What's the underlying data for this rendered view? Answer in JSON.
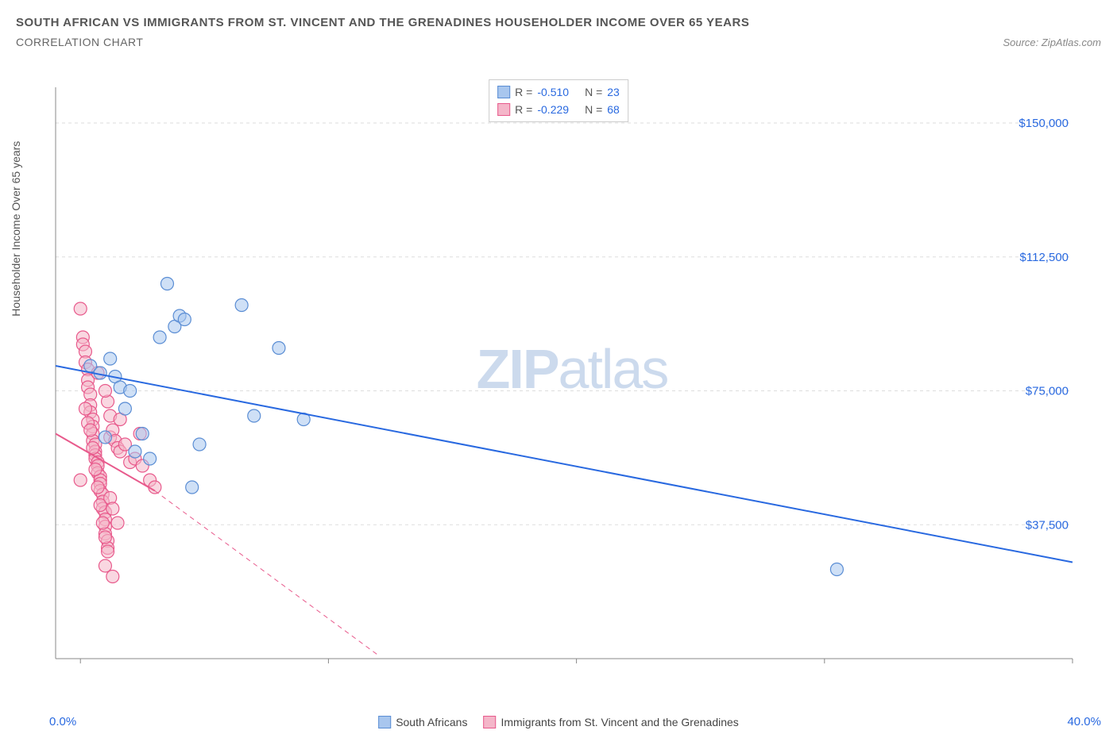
{
  "header": {
    "title": "SOUTH AFRICAN VS IMMIGRANTS FROM ST. VINCENT AND THE GRENADINES HOUSEHOLDER INCOME OVER 65 YEARS",
    "subtitle": "CORRELATION CHART",
    "source": "Source: ZipAtlas.com"
  },
  "watermark": {
    "pre": "ZIP",
    "post": "atlas"
  },
  "chart": {
    "type": "scatter",
    "ylabel": "Householder Income Over 65 years",
    "xlim": [
      -1,
      40
    ],
    "ylim": [
      0,
      160000
    ],
    "xticks": [
      0,
      10,
      20,
      30,
      40
    ],
    "yticks": [
      37500,
      75000,
      112500,
      150000
    ],
    "ytick_labels": [
      "$37,500",
      "$75,000",
      "$112,500",
      "$150,000"
    ],
    "x_axis_labels": {
      "left": "0.0%",
      "right": "40.0%"
    },
    "grid_color": "#dddddd",
    "axis_color": "#888888",
    "background_color": "#ffffff",
    "tick_label_color": "#2969e0",
    "series": [
      {
        "name": "South Africans",
        "fill": "#a8c6ee",
        "fill_opacity": 0.55,
        "stroke": "#5a8dd4",
        "marker_radius": 8,
        "trend": {
          "x1": -1,
          "y1": 82000,
          "x2": 40,
          "y2": 27000,
          "color": "#2969e0",
          "width": 2,
          "dash": ""
        },
        "R": "-0.510",
        "N": "23",
        "points": [
          [
            0.4,
            82000
          ],
          [
            0.8,
            80000
          ],
          [
            1.2,
            84000
          ],
          [
            1.4,
            79000
          ],
          [
            1.6,
            76000
          ],
          [
            2.0,
            75000
          ],
          [
            2.2,
            58000
          ],
          [
            2.5,
            63000
          ],
          [
            2.8,
            56000
          ],
          [
            3.2,
            90000
          ],
          [
            3.5,
            105000
          ],
          [
            3.8,
            93000
          ],
          [
            4.0,
            96000
          ],
          [
            4.2,
            95000
          ],
          [
            4.8,
            60000
          ],
          [
            4.5,
            48000
          ],
          [
            6.5,
            99000
          ],
          [
            7.0,
            68000
          ],
          [
            8.0,
            87000
          ],
          [
            9.0,
            67000
          ],
          [
            30.5,
            25000
          ],
          [
            1.0,
            62000
          ],
          [
            1.8,
            70000
          ]
        ]
      },
      {
        "name": "Immigrants from St. Vincent and the Grenadines",
        "fill": "#f4b6c9",
        "fill_opacity": 0.55,
        "stroke": "#e85a8c",
        "marker_radius": 8,
        "trend": {
          "x1": -1,
          "y1": 63000,
          "x2": 3.0,
          "y2": 47000,
          "color": "#e85a8c",
          "width": 2,
          "dash": ""
        },
        "trend_dashed": {
          "x1": 3.0,
          "y1": 47000,
          "x2": 12,
          "y2": 1000,
          "color": "#e85a8c",
          "width": 1,
          "dash": "6,5"
        },
        "R": "-0.229",
        "N": "68",
        "points": [
          [
            0.0,
            98000
          ],
          [
            0.1,
            90000
          ],
          [
            0.1,
            88000
          ],
          [
            0.2,
            86000
          ],
          [
            0.2,
            83000
          ],
          [
            0.3,
            81000
          ],
          [
            0.3,
            78000
          ],
          [
            0.3,
            76000
          ],
          [
            0.4,
            74000
          ],
          [
            0.4,
            71000
          ],
          [
            0.4,
            69000
          ],
          [
            0.5,
            67000
          ],
          [
            0.5,
            65000
          ],
          [
            0.5,
            63000
          ],
          [
            0.5,
            61000
          ],
          [
            0.6,
            60000
          ],
          [
            0.6,
            58000
          ],
          [
            0.6,
            57000
          ],
          [
            0.6,
            56000
          ],
          [
            0.7,
            55000
          ],
          [
            0.7,
            54000
          ],
          [
            0.7,
            52000
          ],
          [
            0.8,
            51000
          ],
          [
            0.8,
            50000
          ],
          [
            0.8,
            49000
          ],
          [
            0.8,
            47000
          ],
          [
            0.9,
            46000
          ],
          [
            0.9,
            44000
          ],
          [
            0.9,
            42000
          ],
          [
            1.0,
            41000
          ],
          [
            1.0,
            39000
          ],
          [
            1.0,
            37000
          ],
          [
            1.0,
            35000
          ],
          [
            1.1,
            33000
          ],
          [
            1.1,
            31000
          ],
          [
            0.2,
            70000
          ],
          [
            0.3,
            66000
          ],
          [
            0.4,
            64000
          ],
          [
            0.5,
            59000
          ],
          [
            0.6,
            53000
          ],
          [
            0.7,
            48000
          ],
          [
            0.8,
            43000
          ],
          [
            0.9,
            38000
          ],
          [
            1.0,
            34000
          ],
          [
            1.1,
            30000
          ],
          [
            1.2,
            62000
          ],
          [
            1.3,
            64000
          ],
          [
            1.4,
            61000
          ],
          [
            1.5,
            59000
          ],
          [
            1.6,
            58000
          ],
          [
            1.8,
            60000
          ],
          [
            2.0,
            55000
          ],
          [
            2.2,
            56000
          ],
          [
            2.5,
            54000
          ],
          [
            2.8,
            50000
          ],
          [
            3.0,
            48000
          ],
          [
            1.2,
            45000
          ],
          [
            1.3,
            42000
          ],
          [
            1.5,
            38000
          ],
          [
            1.1,
            72000
          ],
          [
            1.2,
            68000
          ],
          [
            1.0,
            75000
          ],
          [
            0.0,
            50000
          ],
          [
            1.0,
            26000
          ],
          [
            1.3,
            23000
          ],
          [
            1.6,
            67000
          ],
          [
            2.4,
            63000
          ],
          [
            0.7,
            80000
          ]
        ]
      }
    ]
  },
  "legend_top": {
    "rows": [
      {
        "swatch_fill": "#a8c6ee",
        "swatch_stroke": "#5a8dd4",
        "R_label": "R =",
        "R_val": "-0.510",
        "N_label": "N =",
        "N_val": "23"
      },
      {
        "swatch_fill": "#f4b6c9",
        "swatch_stroke": "#e85a8c",
        "R_label": "R =",
        "R_val": "-0.229",
        "N_label": "N =",
        "N_val": "68"
      }
    ]
  },
  "legend_bottom": {
    "items": [
      {
        "swatch_fill": "#a8c6ee",
        "swatch_stroke": "#5a8dd4",
        "label": "South Africans"
      },
      {
        "swatch_fill": "#f4b6c9",
        "swatch_stroke": "#e85a8c",
        "label": "Immigrants from St. Vincent and the Grenadines"
      }
    ]
  }
}
